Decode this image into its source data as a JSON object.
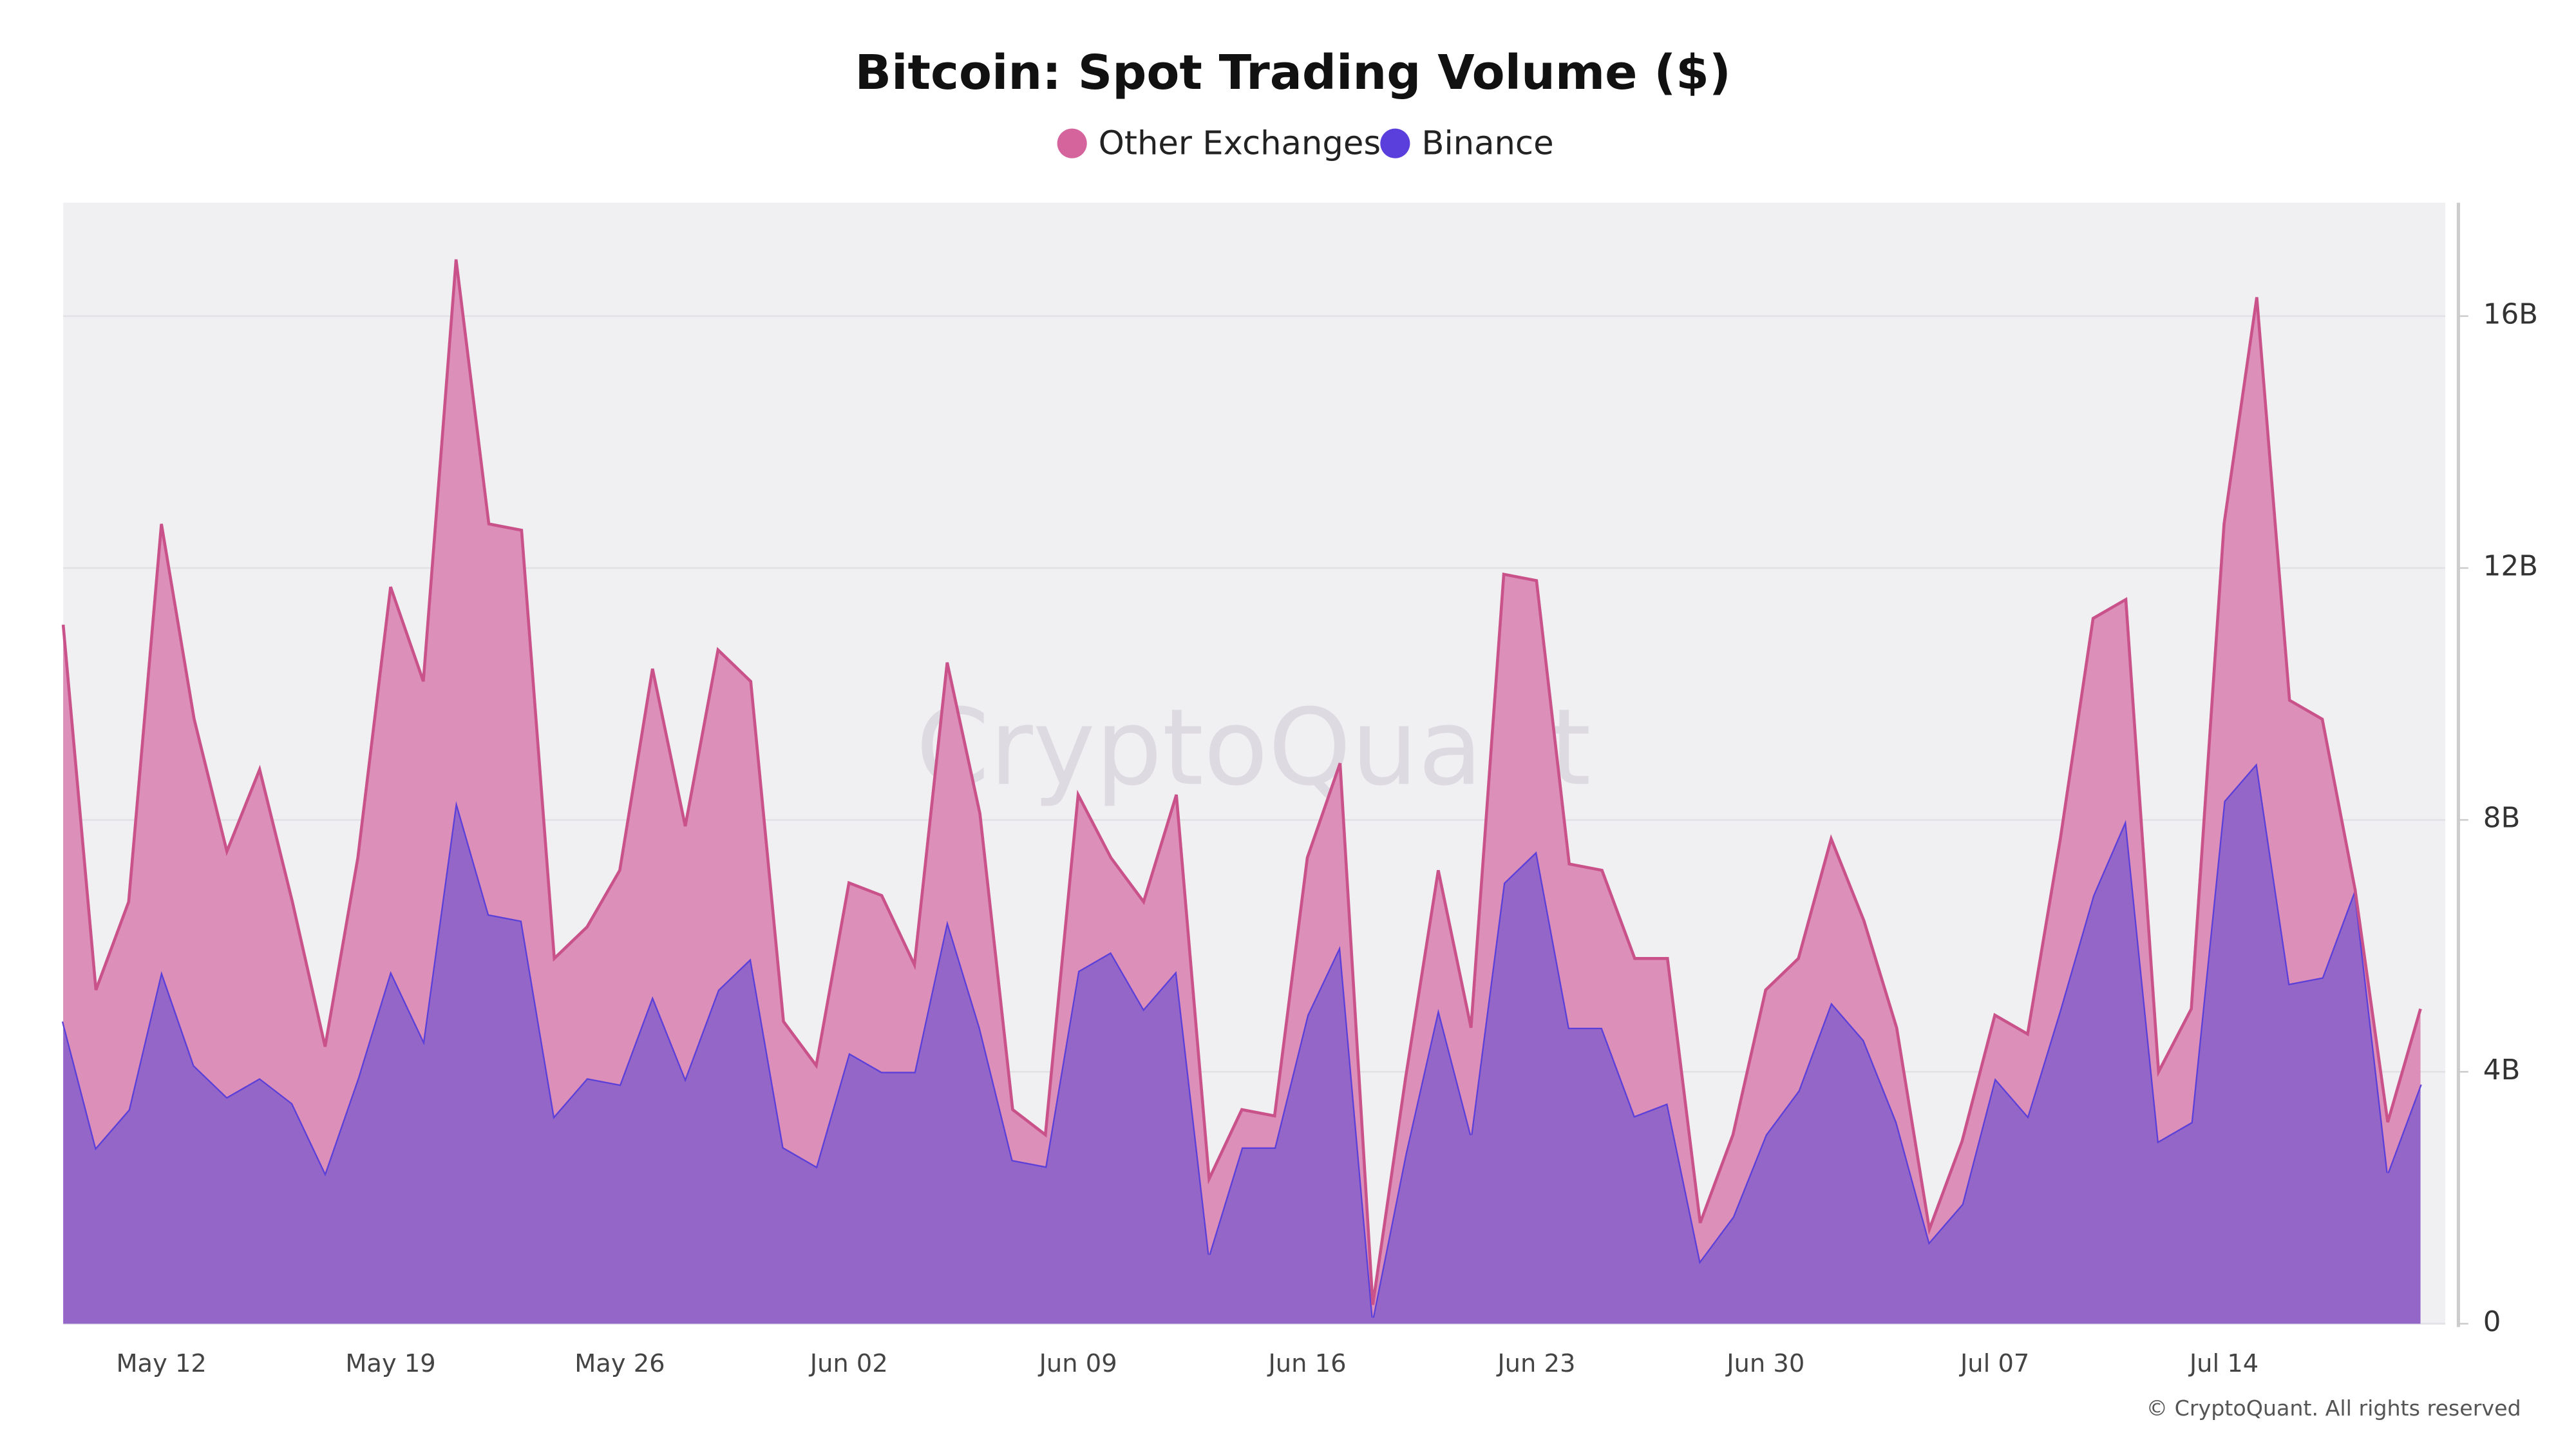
{
  "chart_data": {
    "type": "stacked-area",
    "title": "Bitcoin: Spot Trading Volume ($)",
    "watermark": "CryptoQuant",
    "footer": "© CryptoQuant. All rights reserved",
    "categories": [
      null,
      null,
      null,
      "May 12",
      null,
      null,
      null,
      null,
      null,
      null,
      "May 19",
      null,
      null,
      null,
      null,
      null,
      null,
      "May 26",
      null,
      null,
      null,
      null,
      null,
      null,
      "Jun 02",
      null,
      null,
      null,
      null,
      null,
      null,
      "Jun 09",
      null,
      null,
      null,
      null,
      null,
      null,
      "Jun 16",
      null,
      null,
      null,
      null,
      null,
      null,
      "Jun 23",
      null,
      null,
      null,
      null,
      null,
      null,
      "Jun 30",
      null,
      null,
      null,
      null,
      null,
      null,
      "Jul 07",
      null,
      null,
      null,
      null,
      null,
      null,
      "Jul 14",
      null,
      null,
      null,
      null,
      null,
      null
    ],
    "series": [
      {
        "name": "Other Exchanges",
        "color": "#d5649c",
        "fill": "#dc8fb8",
        "stroke": "#c9528a",
        "values": [
          6.3,
          2.5,
          3.3,
          7.1,
          5.5,
          3.9,
          4.9,
          3.2,
          2.0,
          3.5,
          6.1,
          5.7,
          8.6,
          6.2,
          6.2,
          2.5,
          2.4,
          3.4,
          5.2,
          4.0,
          5.4,
          4.4,
          2.0,
          1.6,
          2.7,
          2.8,
          1.7,
          4.1,
          3.4,
          0.8,
          0.5,
          2.8,
          1.5,
          1.7,
          2.8,
          1.2,
          0.6,
          0.5,
          2.5,
          2.9,
          0.2,
          1.2,
          2.2,
          1.7,
          4.9,
          4.3,
          2.6,
          2.5,
          2.5,
          2.3,
          0.6,
          1.3,
          2.3,
          2.1,
          2.6,
          1.9,
          1.5,
          0.2,
          1.0,
          1.0,
          1.3,
          2.7,
          4.4,
          3.5,
          1.1,
          1.8,
          4.4,
          7.4,
          4.5,
          4.1,
          0,
          0.8,
          1.2
        ]
      },
      {
        "name": "Binance",
        "color": "#5a3fdc",
        "fill": "#9466c8",
        "stroke": "#5b3fd9",
        "values": [
          4.8,
          2.8,
          3.4,
          5.6,
          4.1,
          3.6,
          3.9,
          3.5,
          2.4,
          3.9,
          5.6,
          4.5,
          8.3,
          6.5,
          6.4,
          3.3,
          3.9,
          3.8,
          5.2,
          3.9,
          5.3,
          5.8,
          2.8,
          2.5,
          4.3,
          4.0,
          4.0,
          6.4,
          4.7,
          2.6,
          2.5,
          5.6,
          5.9,
          5.0,
          5.6,
          1.1,
          2.8,
          2.8,
          4.9,
          6.0,
          0.1,
          2.7,
          5.0,
          3.0,
          7.0,
          7.5,
          4.7,
          4.7,
          3.3,
          3.5,
          1.0,
          1.7,
          3.0,
          3.7,
          5.1,
          4.5,
          3.2,
          1.3,
          1.9,
          3.9,
          3.3,
          5.0,
          6.8,
          8.0,
          2.9,
          3.2,
          8.3,
          8.9,
          5.4,
          5.5,
          6.9,
          2.4,
          3.8
        ]
      }
    ],
    "ylim": [
      0,
      17.8
    ],
    "yticks": [
      0,
      {
        "value": 4,
        "label": "4B"
      },
      {
        "value": 8,
        "label": "8B"
      },
      {
        "value": 12,
        "label": "12B"
      },
      {
        "value": 16,
        "label": "16B"
      }
    ],
    "y_axis_side": "right",
    "grid": true,
    "legend_position": "top"
  }
}
